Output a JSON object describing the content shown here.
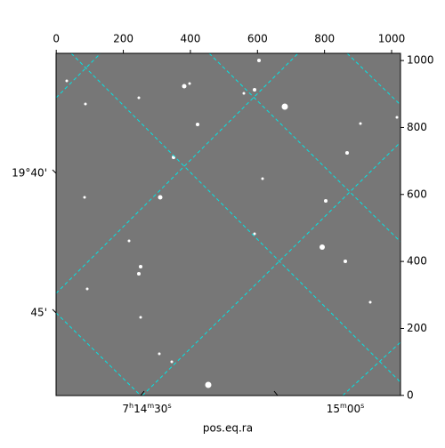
{
  "chart_data": {
    "type": "image",
    "xlabel": "pos.eq.ra",
    "xlim": [
      -0.5,
      1026.5
    ],
    "ylim": [
      -0.5,
      1021.5
    ],
    "xticks": [
      0,
      200,
      400,
      600,
      800,
      1000
    ],
    "yticks": [
      0,
      200,
      400,
      600,
      800,
      1000
    ],
    "ra_labels": [
      "7h14m30s",
      "15m00s"
    ],
    "dec_labels": [
      "19°40'",
      "45'"
    ]
  }
}
